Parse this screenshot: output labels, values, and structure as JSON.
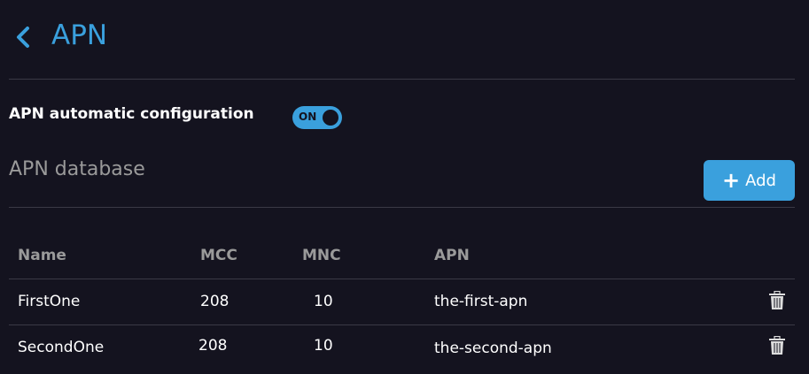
{
  "header": {
    "title": "APN",
    "back_icon": "chevron-left-icon"
  },
  "auto_config": {
    "label": "APN automatic configuration",
    "toggle_label": "ON",
    "enabled": true
  },
  "database": {
    "title": "APN database",
    "add_label": "Add"
  },
  "colors": {
    "accent": "#3aa0dd",
    "background": "#14131f"
  },
  "table": {
    "columns": [
      "Name",
      "MCC",
      "MNC",
      "APN"
    ],
    "rows": [
      {
        "name": "FirstOne",
        "mcc": "208",
        "mnc": "10",
        "apn": "the-first-apn"
      },
      {
        "name": "SecondOne",
        "mcc": "208",
        "mnc": "10",
        "apn": "the-second-apn"
      }
    ]
  }
}
